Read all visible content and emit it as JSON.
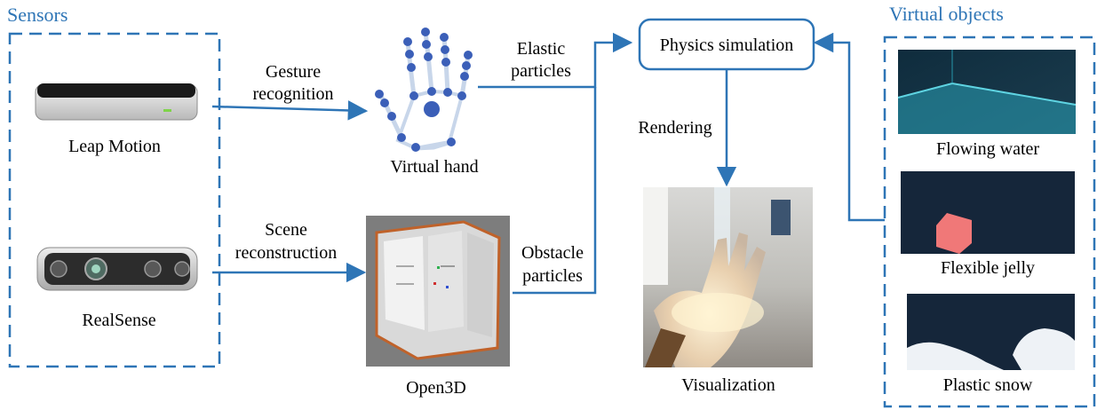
{
  "sensors": {
    "group_label": "Sensors",
    "leap_motion_label": "Leap Motion",
    "realsense_label": "RealSense"
  },
  "edges": {
    "gesture_label": [
      "Gesture",
      "recognition"
    ],
    "scene_label": [
      "Scene",
      "reconstruction"
    ],
    "elastic_label": [
      "Elastic",
      "particles"
    ],
    "obstacle_label": [
      "Obstacle",
      "particles"
    ],
    "rendering_label": "Rendering"
  },
  "nodes": {
    "virtual_hand_label": "Virtual hand",
    "open3d_label": "Open3D",
    "physics_label": "Physics simulation",
    "visualization_label": "Visualization"
  },
  "virtual_objects": {
    "group_label": "Virtual objects",
    "items": [
      {
        "label": "Flowing water"
      },
      {
        "label": "Flexible jelly"
      },
      {
        "label": "Plastic snow"
      }
    ]
  },
  "colors": {
    "accent": "#2e75b6",
    "text": "#000000",
    "panel_dark": "#15263a",
    "jelly": "#f07878"
  }
}
